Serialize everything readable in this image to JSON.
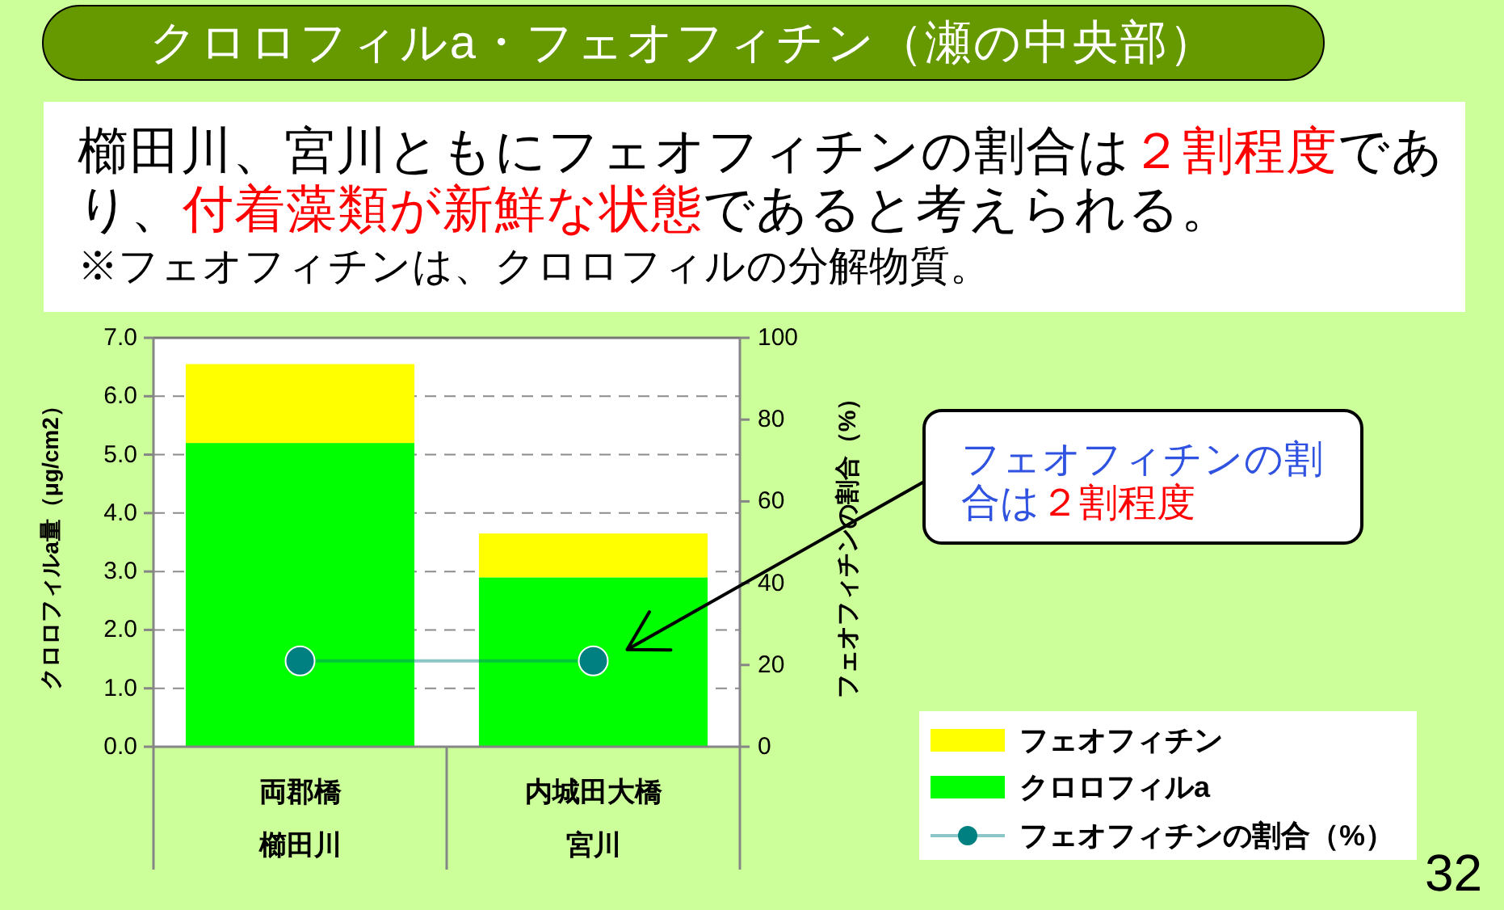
{
  "chart_data": {
    "type": "bar",
    "title": "クロロフィルa・フェオフィチン（瀬の中央部）",
    "categories": [
      "両郡橋",
      "内城田大橋"
    ],
    "stacked": true,
    "series": [
      {
        "name": "クロロフィルa",
        "color": "#00ff00",
        "values": [
          5.2,
          2.9
        ]
      },
      {
        "name": "フェオフィチン",
        "color": "#ffff00",
        "values": [
          1.35,
          0.75
        ]
      },
      {
        "name": "フェオフィチンの割合（%）",
        "type": "line",
        "axis": "y2",
        "color": "#008080",
        "values": [
          21,
          21
        ]
      }
    ],
    "ylabel": "クロロフィルa量（μg/cm2）",
    "y2label": "フェオフィチンの割合（%）",
    "ylim": [
      0,
      7
    ],
    "yticks": [
      {
        "value": 0,
        "label": "0.0"
      },
      {
        "value": 1,
        "label": "1.0"
      },
      {
        "value": 2,
        "label": "2.0"
      },
      {
        "value": 3,
        "label": "3.0"
      },
      {
        "value": 4,
        "label": "4.0"
      },
      {
        "value": 5,
        "label": "5.0"
      },
      {
        "value": 6,
        "label": "6.0"
      },
      {
        "value": 7,
        "label": "7.0"
      }
    ],
    "y2lim": [
      0,
      100
    ],
    "y2ticks": [
      0,
      20,
      40,
      60,
      80,
      100
    ],
    "grid": "y",
    "legend": "bottom right",
    "marker": "circle",
    "annotations": [
      "櫛田川、宮川ともにフェオフィチンの割合は",
      "２割程度",
      "であ",
      "り、",
      "付着藻類が新鮮な状態",
      "であると考えられる。",
      "※フェオフィチンは、クロロフィルの分解物質。",
      "櫛田川",
      "宮川",
      "フェオフィチンの割",
      "合は",
      "２割程度",
      "32"
    ]
  }
}
